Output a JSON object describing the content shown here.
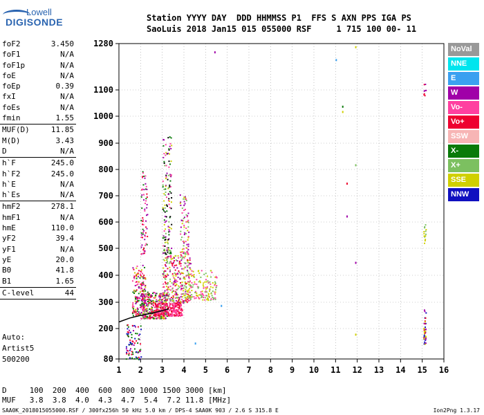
{
  "logo": {
    "line1": "Lowell",
    "line2": "DIGISONDE"
  },
  "header": {
    "line1": "Station YYYY DAY  DDD HHMMSS P1  FFS S AXN PPS IGA PS",
    "line2": "SaoLuis 2018 Jan15 015 055000 RSF     1 715 100 00- 11"
  },
  "params": [
    {
      "label": "foF2",
      "value": "3.450"
    },
    {
      "label": "foF1",
      "value": "N/A"
    },
    {
      "label": "foF1p",
      "value": "N/A"
    },
    {
      "label": "foE",
      "value": "N/A"
    },
    {
      "label": "foEp",
      "value": "0.39"
    },
    {
      "label": "fxI",
      "value": "N/A"
    },
    {
      "label": "foEs",
      "value": "N/A"
    },
    {
      "label": "fmin",
      "value": "1.55",
      "sep": true
    },
    {
      "label": "MUF(D)",
      "value": "11.85"
    },
    {
      "label": "M(D)",
      "value": "3.43"
    },
    {
      "label": "D",
      "value": "N/A",
      "sep": true
    },
    {
      "label": "h`F",
      "value": "245.0"
    },
    {
      "label": "h`F2",
      "value": "245.0"
    },
    {
      "label": "h`E",
      "value": "N/A"
    },
    {
      "label": "h`Es",
      "value": "N/A",
      "sep": true
    },
    {
      "label": "hmF2",
      "value": "278.1"
    },
    {
      "label": "hmF1",
      "value": "N/A"
    },
    {
      "label": "hmE",
      "value": "110.0"
    },
    {
      "label": "yF2",
      "value": "39.4"
    },
    {
      "label": "yF1",
      "value": "N/A"
    },
    {
      "label": "yE",
      "value": "20.0"
    },
    {
      "label": "B0",
      "value": "41.8"
    },
    {
      "label": "B1",
      "value": "1.65",
      "sep": true
    },
    {
      "label": "C-level",
      "value": "44",
      "sep": true
    }
  ],
  "auto": {
    "l1": "Auto:",
    "l2": "Artist5",
    "l3": "500200"
  },
  "legend": [
    {
      "label": "NoVal",
      "color": "#999999"
    },
    {
      "label": "NNE",
      "color": "#00e5ee"
    },
    {
      "label": "E",
      "color": "#3aa0f0"
    },
    {
      "label": "W",
      "color": "#a000a8"
    },
    {
      "label": "Vo-",
      "color": "#ff40a0"
    },
    {
      "label": "Vo+",
      "color": "#ee0030"
    },
    {
      "label": "SSW",
      "color": "#f7b5b5"
    },
    {
      "label": "X-",
      "color": "#0a7a0a"
    },
    {
      "label": "X+",
      "color": "#7cc060"
    },
    {
      "label": "SSE",
      "color": "#d0d000"
    },
    {
      "label": "NNW",
      "color": "#1010c0"
    }
  ],
  "dmuf": {
    "d_line": "D     100  200  400  600  800 1000 1500 3000 [km]",
    "muf_line": "MUF   3.8  3.8  4.0  4.3  4.7  5.4  7.2 11.8 [MHz]"
  },
  "footer": {
    "text": "SAA0K_2018015055000.RSF / 300fx256h 50 kHz 5.0 km / DPS-4 SAA0K 903 / 2.6 S 315.8 E",
    "version": "Ion2Png 1.3.17"
  },
  "chart_data": {
    "type": "scatter",
    "xlim": [
      1,
      16
    ],
    "ylim": [
      80,
      1280
    ],
    "x_ticks": [
      1,
      2,
      3,
      4,
      5,
      6,
      7,
      8,
      9,
      10,
      11,
      12,
      13,
      14,
      15,
      16
    ],
    "y_ticks": [
      80,
      200,
      300,
      400,
      500,
      600,
      700,
      800,
      900,
      1000,
      1100,
      1280
    ],
    "grid": true,
    "trace": {
      "x": [
        1,
        1.5,
        2,
        2.5,
        3,
        3.3
      ],
      "y": [
        225,
        240,
        250,
        258,
        268,
        275
      ]
    },
    "clusters": [
      {
        "xr": [
          1.6,
          2.2
        ],
        "yr": [
          250,
          440
        ],
        "n": 180,
        "colors": [
          "#ee0030",
          "#ff40a0",
          "#a000a8",
          "#d0d000",
          "#0a7a0a"
        ]
      },
      {
        "xr": [
          2.0,
          3.2
        ],
        "yr": [
          240,
          340
        ],
        "n": 380,
        "colors": [
          "#ee0030",
          "#ff40a0",
          "#a000a8",
          "#d0d000",
          "#0a7a0a",
          "#7cc060"
        ]
      },
      {
        "xr": [
          2.6,
          3.9
        ],
        "yr": [
          250,
          300
        ],
        "n": 260,
        "colors": [
          "#ee0030",
          "#ff40a0"
        ]
      },
      {
        "xr": [
          3.0,
          4.3
        ],
        "yr": [
          300,
          480
        ],
        "n": 300,
        "colors": [
          "#d0d000",
          "#ee0030",
          "#ff40a0",
          "#a000a8",
          "#7cc060"
        ]
      },
      {
        "xr": [
          4.0,
          5.5
        ],
        "yr": [
          310,
          420
        ],
        "n": 160,
        "colors": [
          "#d0d000",
          "#7cc060",
          "#ff40a0"
        ]
      },
      {
        "xr": [
          3.0,
          3.4
        ],
        "yr": [
          480,
          930
        ],
        "n": 140,
        "colors": [
          "#a000a8",
          "#0a7a0a",
          "#7cc060",
          "#ff40a0",
          "#d0d000",
          "#000000"
        ]
      },
      {
        "xr": [
          2.0,
          2.3
        ],
        "yr": [
          480,
          800
        ],
        "n": 70,
        "colors": [
          "#a000a8",
          "#ff40a0",
          "#ee0030",
          "#0a7a0a"
        ]
      },
      {
        "xr": [
          3.8,
          4.2
        ],
        "yr": [
          480,
          720
        ],
        "n": 80,
        "colors": [
          "#d0d000",
          "#7cc060",
          "#a000a8",
          "#ff40a0"
        ]
      },
      {
        "xr": [
          1.3,
          2.0
        ],
        "yr": [
          80,
          220
        ],
        "n": 80,
        "colors": [
          "#a000a8",
          "#ee0030",
          "#0a7a0a",
          "#1010c0"
        ]
      },
      {
        "xr": [
          15.05,
          15.15
        ],
        "yr": [
          140,
          280
        ],
        "n": 40,
        "colors": [
          "#a000a8",
          "#ee0030",
          "#1010c0",
          "#d0d000"
        ]
      },
      {
        "xr": [
          15.05,
          15.15
        ],
        "yr": [
          520,
          610
        ],
        "n": 14,
        "colors": [
          "#d0d000",
          "#7cc060"
        ]
      },
      {
        "xr": [
          15.05,
          15.15
        ],
        "yr": [
          1080,
          1130
        ],
        "n": 8,
        "colors": [
          "#ee0030",
          "#a000a8"
        ]
      }
    ],
    "points": [
      {
        "x": 5.4,
        "y": 1250,
        "c": "#a000a8"
      },
      {
        "x": 11.0,
        "y": 1220,
        "c": "#3aa0f0"
      },
      {
        "x": 11.9,
        "y": 1270,
        "c": "#d0d000"
      },
      {
        "x": 11.3,
        "y": 1040,
        "c": "#0a7a0a"
      },
      {
        "x": 11.3,
        "y": 1020,
        "c": "#d0d000"
      },
      {
        "x": 11.5,
        "y": 750,
        "c": "#ee0030"
      },
      {
        "x": 11.5,
        "y": 625,
        "c": "#a000a8"
      },
      {
        "x": 11.9,
        "y": 450,
        "c": "#a000a8"
      },
      {
        "x": 11.9,
        "y": 180,
        "c": "#d0d000"
      },
      {
        "x": 11.9,
        "y": 820,
        "c": "#7cc060"
      },
      {
        "x": 4.5,
        "y": 145,
        "c": "#3aa0f0"
      },
      {
        "x": 5.7,
        "y": 290,
        "c": "#3aa0f0"
      }
    ]
  }
}
